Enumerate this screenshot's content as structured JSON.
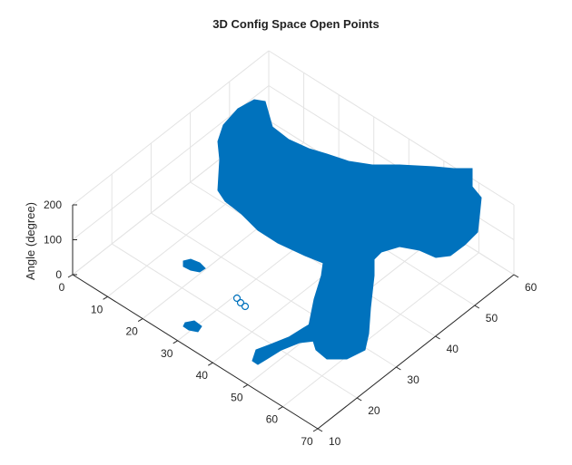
{
  "chart_data": {
    "type": "scatter",
    "title": "3D Config Space Open Points",
    "zlabel": "Angle (degree)",
    "x_ticks": [
      "0",
      "10",
      "20",
      "30",
      "40",
      "50",
      "60",
      "70"
    ],
    "y_ticks": [
      "10",
      "20",
      "30",
      "40",
      "50",
      "60"
    ],
    "z_ticks": [
      "0",
      "100",
      "200"
    ],
    "xlim": [
      0,
      70
    ],
    "ylim": [
      10,
      60
    ],
    "zlim": [
      0,
      200
    ],
    "grid": true,
    "marker": "circle",
    "series_color": "#0072bd",
    "regions": [
      {
        "x": [
          43,
          52
        ],
        "y": [
          10,
          25
        ],
        "z": [
          0,
          40
        ]
      },
      {
        "x": [
          10,
          62
        ],
        "y": [
          28,
          60
        ],
        "z": [
          80,
          200
        ]
      },
      {
        "x": [
          50,
          60
        ],
        "y": [
          11,
          14
        ],
        "z": [
          0,
          20
        ]
      },
      {
        "x": [
          15,
          18
        ],
        "y": [
          22,
          25
        ],
        "z": [
          0,
          10
        ]
      },
      {
        "x": [
          27,
          30
        ],
        "y": [
          18,
          20
        ],
        "z": [
          0,
          10
        ]
      },
      {
        "x": [
          30,
          32
        ],
        "y": [
          25,
          27
        ],
        "z": [
          0,
          10
        ]
      }
    ]
  }
}
